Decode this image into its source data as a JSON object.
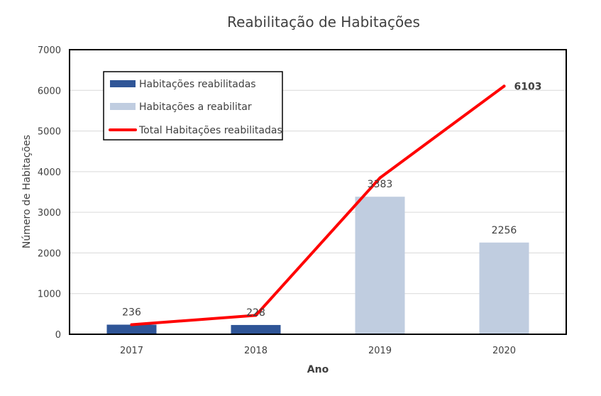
{
  "chart_data": {
    "type": "bar",
    "title": "Reabilitação de Habitações",
    "xlabel": "Ano",
    "ylabel": "Número de Habitações",
    "categories": [
      "2017",
      "2018",
      "2019",
      "2020"
    ],
    "ylim": [
      0,
      7000
    ],
    "yticks": [
      0,
      1000,
      2000,
      3000,
      4000,
      5000,
      6000,
      7000
    ],
    "grid": true,
    "legend_position": "top-left",
    "series": [
      {
        "name": "Habitações reabilitadas",
        "kind": "bar",
        "color": "#2f5597",
        "values": [
          236,
          228,
          null,
          null
        ],
        "labels": [
          "236",
          "228",
          "",
          ""
        ]
      },
      {
        "name": "Habitações a reabilitar",
        "kind": "bar",
        "color": "#c0cde0",
        "values": [
          null,
          null,
          3383,
          2256
        ],
        "labels": [
          "",
          "",
          "3383",
          "2256"
        ]
      },
      {
        "name": "Total Habitações reabilitadas",
        "kind": "line",
        "color": "#ff0000",
        "values": [
          236,
          464,
          3847,
          6103
        ],
        "labels": [
          "",
          "",
          "",
          "6103"
        ]
      }
    ]
  }
}
